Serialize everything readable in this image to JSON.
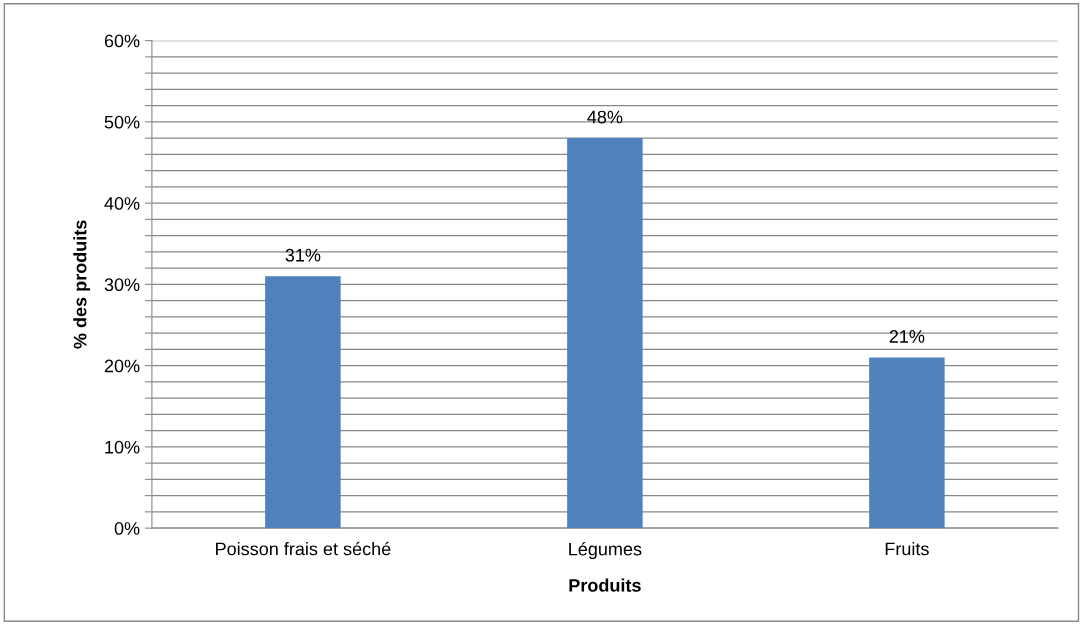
{
  "chart_data": {
    "type": "bar",
    "xlabel": "Produits",
    "ylabel": "% des produits",
    "categories": [
      "Poisson frais et séché",
      "Légumes",
      "Fruits"
    ],
    "values": [
      31,
      48,
      21
    ],
    "color": "#4f81bd",
    "value_labels": [
      "31%",
      "48%",
      "21%"
    ],
    "ylim": [
      0,
      60
    ],
    "yticks": [
      {
        "value": 0,
        "label": "0%"
      },
      {
        "value": 2,
        "label": null
      },
      {
        "value": 4,
        "label": null
      },
      {
        "value": 6,
        "label": null
      },
      {
        "value": 8,
        "label": null
      },
      {
        "value": 10,
        "label": "10%"
      },
      {
        "value": 12,
        "label": null
      },
      {
        "value": 14,
        "label": null
      },
      {
        "value": 16,
        "label": null
      },
      {
        "value": 18,
        "label": null
      },
      {
        "value": 20,
        "label": "20%"
      },
      {
        "value": 22,
        "label": null
      },
      {
        "value": 24,
        "label": null
      },
      {
        "value": 26,
        "label": null
      },
      {
        "value": 28,
        "label": null
      },
      {
        "value": 30,
        "label": "30%"
      },
      {
        "value": 32,
        "label": null
      },
      {
        "value": 34,
        "label": null
      },
      {
        "value": 36,
        "label": null
      },
      {
        "value": 38,
        "label": null
      },
      {
        "value": 40,
        "label": "40%"
      },
      {
        "value": 42,
        "label": null
      },
      {
        "value": 44,
        "label": null
      },
      {
        "value": 46,
        "label": null
      },
      {
        "value": 48,
        "label": null
      },
      {
        "value": 50,
        "label": "50%"
      },
      {
        "value": 52,
        "label": null
      },
      {
        "value": 54,
        "label": null
      },
      {
        "value": 56,
        "label": null
      },
      {
        "value": 58,
        "label": null
      },
      {
        "value": 60,
        "label": "60%"
      }
    ],
    "grid": "y",
    "legend": false
  }
}
